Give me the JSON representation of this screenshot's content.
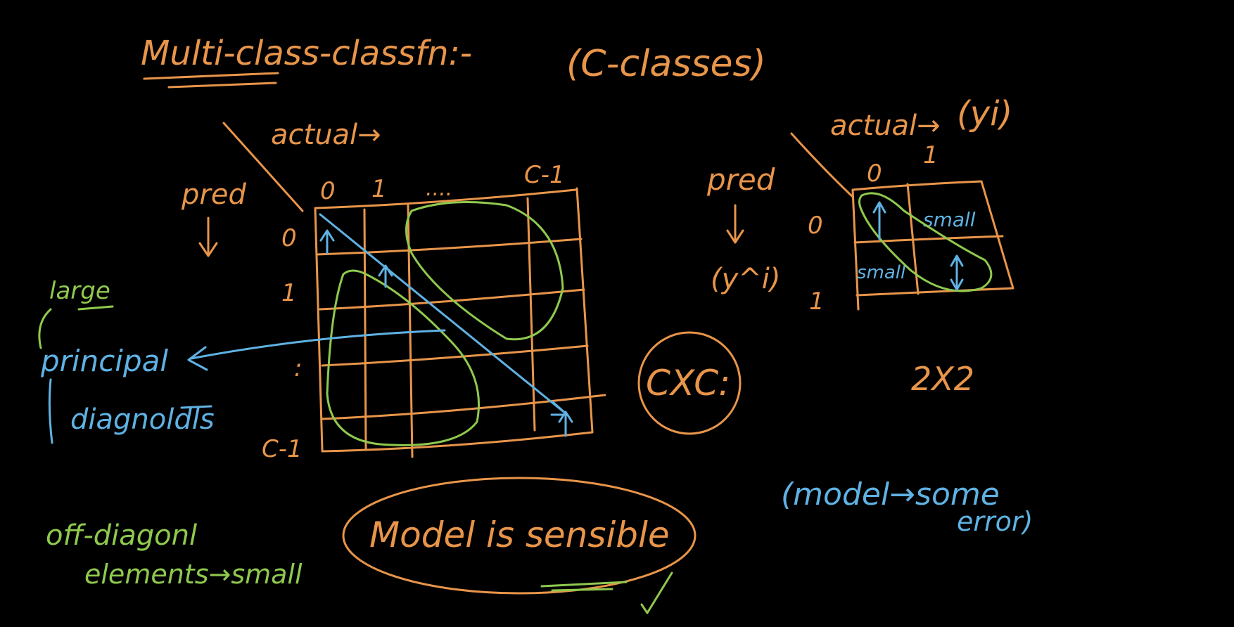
{
  "title": "Multi-class-classfn:-",
  "classes_note": "(C-classes)",
  "big_matrix": {
    "actual_label": "actual→",
    "pred_label": "pred",
    "col_labels": [
      "0",
      "1",
      "....",
      "C-1"
    ],
    "row_labels": [
      "0",
      "1",
      ":",
      "C-1"
    ]
  },
  "small_matrix": {
    "actual_label": "actual→",
    "actual_var": "(yi)",
    "pred_label": "pred",
    "pred_var": "(y^i)",
    "col_labels": [
      "0",
      "1"
    ],
    "row_labels": [
      "0",
      "1"
    ],
    "cells": [
      "small",
      "small"
    ],
    "size": "2X2"
  },
  "cxc": "CXC:",
  "left_notes": {
    "large": "large",
    "principal": "principal",
    "diagonals": "diagnoldls"
  },
  "off_diag_note": [
    "off-diagonl",
    "elements→small"
  ],
  "model_sensible": "Model is sensible",
  "model_error": [
    "(model→some",
    "error)"
  ],
  "colors": {
    "orange": "#e8954a",
    "green": "#8fc94e",
    "blue": "#5fb2e3",
    "background": "#000000"
  }
}
